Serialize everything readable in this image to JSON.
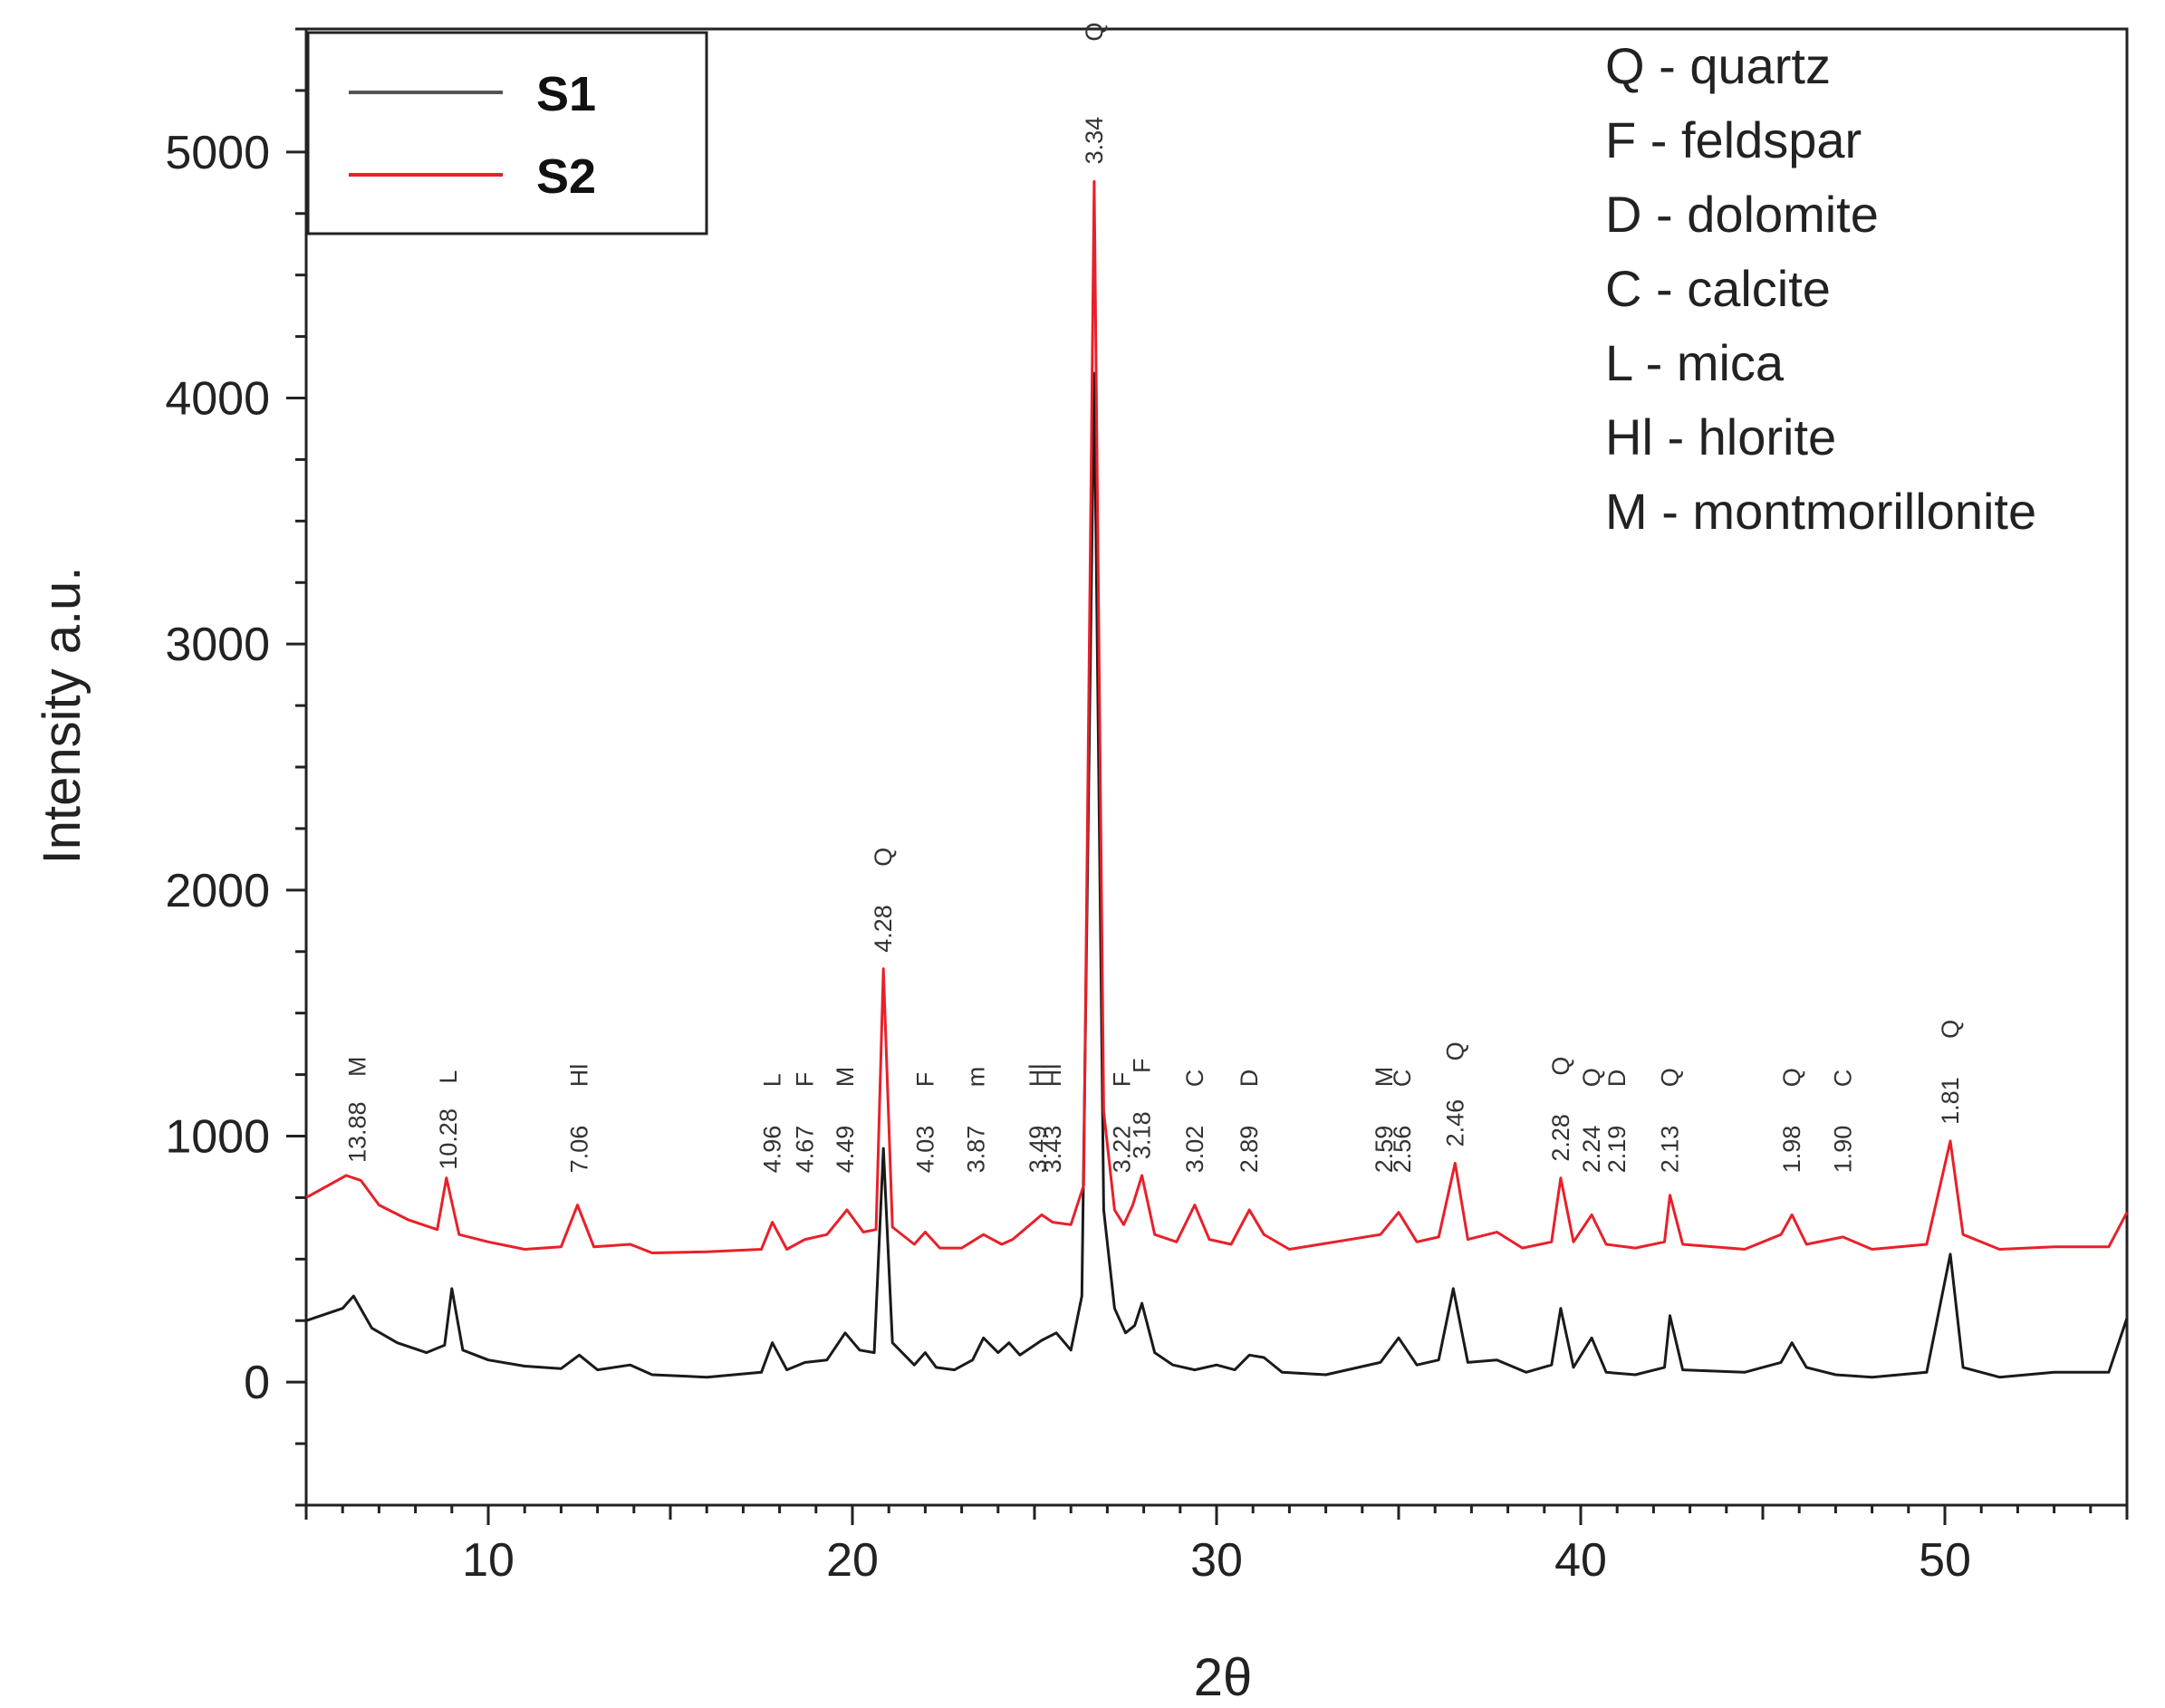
{
  "chart_data": {
    "type": "line",
    "title": "",
    "xlabel": "2θ",
    "ylabel": "Intensity a.u.",
    "xlim": [
      5,
      55
    ],
    "ylim": [
      -500,
      5500
    ],
    "x_ticks": [
      10,
      20,
      30,
      40,
      50
    ],
    "y_ticks": [
      0,
      1000,
      2000,
      3000,
      4000,
      5000
    ],
    "grid": false,
    "legend_position": "top-left",
    "series": [
      {
        "name": "S1",
        "color": "#1a1a1a",
        "points": [
          [
            5,
            250
          ],
          [
            6,
            300
          ],
          [
            6.3,
            350
          ],
          [
            6.8,
            220
          ],
          [
            7.5,
            160
          ],
          [
            8.3,
            120
          ],
          [
            8.8,
            150
          ],
          [
            9.0,
            380
          ],
          [
            9.3,
            130
          ],
          [
            10,
            90
          ],
          [
            11,
            65
          ],
          [
            12,
            55
          ],
          [
            12.5,
            110
          ],
          [
            13,
            50
          ],
          [
            13.9,
            70
          ],
          [
            14.5,
            30
          ],
          [
            16,
            20
          ],
          [
            17.5,
            40
          ],
          [
            17.8,
            160
          ],
          [
            18.2,
            50
          ],
          [
            18.7,
            80
          ],
          [
            19.3,
            90
          ],
          [
            19.8,
            200
          ],
          [
            20.2,
            130
          ],
          [
            20.6,
            120
          ],
          [
            20.85,
            950
          ],
          [
            21.1,
            160
          ],
          [
            21.7,
            70
          ],
          [
            22.0,
            120
          ],
          [
            22.3,
            60
          ],
          [
            22.8,
            50
          ],
          [
            23.3,
            90
          ],
          [
            23.6,
            180
          ],
          [
            24.0,
            120
          ],
          [
            24.3,
            160
          ],
          [
            24.6,
            110
          ],
          [
            25.2,
            170
          ],
          [
            25.6,
            200
          ],
          [
            26.0,
            130
          ],
          [
            26.3,
            350
          ],
          [
            26.64,
            4100
          ],
          [
            26.9,
            700
          ],
          [
            27.2,
            300
          ],
          [
            27.5,
            200
          ],
          [
            27.75,
            230
          ],
          [
            27.95,
            320
          ],
          [
            28.3,
            120
          ],
          [
            28.8,
            70
          ],
          [
            29.4,
            50
          ],
          [
            30.0,
            70
          ],
          [
            30.5,
            50
          ],
          [
            30.9,
            110
          ],
          [
            31.3,
            100
          ],
          [
            31.8,
            40
          ],
          [
            33,
            30
          ],
          [
            34.5,
            80
          ],
          [
            35.0,
            180
          ],
          [
            35.5,
            70
          ],
          [
            36.1,
            90
          ],
          [
            36.5,
            380
          ],
          [
            36.9,
            80
          ],
          [
            37.7,
            90
          ],
          [
            38.5,
            40
          ],
          [
            39.2,
            70
          ],
          [
            39.45,
            300
          ],
          [
            39.8,
            60
          ],
          [
            40.3,
            180
          ],
          [
            40.7,
            40
          ],
          [
            41.5,
            30
          ],
          [
            42.3,
            60
          ],
          [
            42.45,
            270
          ],
          [
            42.8,
            50
          ],
          [
            44.5,
            40
          ],
          [
            45.5,
            80
          ],
          [
            45.8,
            160
          ],
          [
            46.2,
            60
          ],
          [
            47,
            30
          ],
          [
            48,
            20
          ],
          [
            49.5,
            40
          ],
          [
            50.15,
            520
          ],
          [
            50.5,
            60
          ],
          [
            51.5,
            20
          ],
          [
            53,
            40
          ],
          [
            54.5,
            40
          ],
          [
            55,
            260
          ]
        ]
      },
      {
        "name": "S2",
        "color": "#e8202a",
        "points": [
          [
            5,
            750
          ],
          [
            6.1,
            840
          ],
          [
            6.5,
            820
          ],
          [
            7.0,
            720
          ],
          [
            7.8,
            660
          ],
          [
            8.6,
            620
          ],
          [
            8.85,
            830
          ],
          [
            9.2,
            600
          ],
          [
            10,
            570
          ],
          [
            11,
            540
          ],
          [
            12,
            550
          ],
          [
            12.45,
            720
          ],
          [
            12.9,
            550
          ],
          [
            13.9,
            560
          ],
          [
            14.5,
            525
          ],
          [
            16,
            530
          ],
          [
            17.5,
            540
          ],
          [
            17.8,
            650
          ],
          [
            18.2,
            540
          ],
          [
            18.7,
            580
          ],
          [
            19.3,
            600
          ],
          [
            19.85,
            700
          ],
          [
            20.3,
            610
          ],
          [
            20.65,
            620
          ],
          [
            20.85,
            1680
          ],
          [
            21.1,
            630
          ],
          [
            21.7,
            560
          ],
          [
            22.0,
            610
          ],
          [
            22.4,
            545
          ],
          [
            23.0,
            545
          ],
          [
            23.6,
            600
          ],
          [
            24.1,
            560
          ],
          [
            24.4,
            580
          ],
          [
            25.2,
            680
          ],
          [
            25.5,
            650
          ],
          [
            26.0,
            640
          ],
          [
            26.35,
            800
          ],
          [
            26.64,
            4880
          ],
          [
            26.9,
            1100
          ],
          [
            27.2,
            700
          ],
          [
            27.45,
            640
          ],
          [
            27.7,
            720
          ],
          [
            27.95,
            840
          ],
          [
            28.3,
            600
          ],
          [
            28.9,
            570
          ],
          [
            29.4,
            720
          ],
          [
            29.8,
            580
          ],
          [
            30.4,
            560
          ],
          [
            30.9,
            700
          ],
          [
            31.3,
            600
          ],
          [
            32,
            540
          ],
          [
            34.5,
            600
          ],
          [
            35.0,
            690
          ],
          [
            35.5,
            570
          ],
          [
            36.1,
            590
          ],
          [
            36.55,
            890
          ],
          [
            36.9,
            580
          ],
          [
            37.7,
            610
          ],
          [
            38.4,
            545
          ],
          [
            39.2,
            570
          ],
          [
            39.45,
            830
          ],
          [
            39.8,
            570
          ],
          [
            40.3,
            680
          ],
          [
            40.7,
            560
          ],
          [
            41.5,
            545
          ],
          [
            42.3,
            570
          ],
          [
            42.45,
            760
          ],
          [
            42.8,
            560
          ],
          [
            44.5,
            540
          ],
          [
            45.5,
            600
          ],
          [
            45.8,
            680
          ],
          [
            46.2,
            560
          ],
          [
            47.2,
            590
          ],
          [
            48,
            540
          ],
          [
            49.5,
            560
          ],
          [
            50.15,
            980
          ],
          [
            50.5,
            600
          ],
          [
            51.5,
            540
          ],
          [
            53,
            550
          ],
          [
            54.5,
            550
          ],
          [
            55,
            690
          ]
        ]
      }
    ],
    "peak_labels": [
      {
        "x": 6.4,
        "value": "13.88",
        "phase": "M"
      },
      {
        "x": 8.9,
        "value": "10.28",
        "phase": "L"
      },
      {
        "x": 12.5,
        "value": "7.06",
        "phase": "Hl"
      },
      {
        "x": 17.8,
        "value": "4.96",
        "phase": "L"
      },
      {
        "x": 18.7,
        "value": "4.67",
        "phase": "F"
      },
      {
        "x": 19.8,
        "value": "4.49",
        "phase": "M"
      },
      {
        "x": 20.85,
        "value": "4.28",
        "phase": "Q"
      },
      {
        "x": 22.0,
        "value": "4.03",
        "phase": "F"
      },
      {
        "x": 23.4,
        "value": "3.87",
        "phase": "m"
      },
      {
        "x": 25.1,
        "value": "3.49",
        "phase": "Hl"
      },
      {
        "x": 25.5,
        "value": "3.43",
        "phase": "Hl"
      },
      {
        "x": 26.64,
        "value": "3.34",
        "phase": "Q"
      },
      {
        "x": 27.4,
        "value": "3.22",
        "phase": "F"
      },
      {
        "x": 27.95,
        "value": "3.18",
        "phase": "F"
      },
      {
        "x": 29.4,
        "value": "3.02",
        "phase": "C"
      },
      {
        "x": 30.9,
        "value": "2.89",
        "phase": "D"
      },
      {
        "x": 34.6,
        "value": "2.59",
        "phase": "M"
      },
      {
        "x": 35.1,
        "value": "2.56",
        "phase": "C"
      },
      {
        "x": 36.55,
        "value": "2.46",
        "phase": "Q"
      },
      {
        "x": 39.45,
        "value": "2.28",
        "phase": "Q"
      },
      {
        "x": 40.3,
        "value": "2.24",
        "phase": "Q"
      },
      {
        "x": 41.0,
        "value": "2.19",
        "phase": "D"
      },
      {
        "x": 42.45,
        "value": "2.13",
        "phase": "Q"
      },
      {
        "x": 45.8,
        "value": "1.98",
        "phase": "Q"
      },
      {
        "x": 47.2,
        "value": "1.90",
        "phase": "C"
      },
      {
        "x": 50.15,
        "value": "1.81",
        "phase": "Q"
      }
    ],
    "phase_key": [
      "Q - quartz",
      "F - feldspar",
      "D - dolomite",
      "C - calcite",
      "L - mica",
      "Hl - hlorite",
      "M - montmorillonite"
    ]
  }
}
